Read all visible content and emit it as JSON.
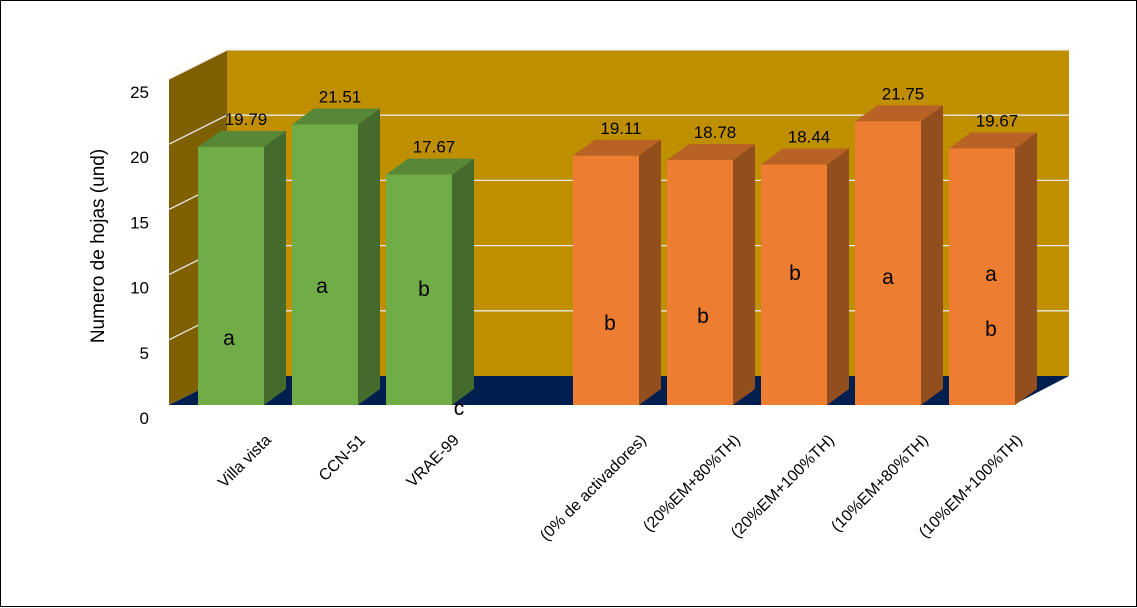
{
  "chart_data": {
    "type": "bar",
    "style": "3d-column",
    "ylabel": "Numero de hojas (und)",
    "ylim": [
      0,
      25
    ],
    "yticks": [
      0,
      5,
      10,
      15,
      20,
      25
    ],
    "grid": true,
    "legend": "none",
    "categories": [
      "Villa vista",
      "CCN-51",
      "VRAE-99",
      "(0% de activadores)",
      "(20%EM+80%TH)",
      "(20%EM+100%TH)",
      "(10%EM+80%TH)",
      "(10%EM+100%TH)"
    ],
    "values": [
      19.79,
      21.51,
      17.67,
      19.11,
      18.78,
      18.44,
      21.75,
      19.67
    ],
    "value_labels": [
      "19.79",
      "21.51",
      "17.67",
      "19.11",
      "18.78",
      "18.44",
      "21.75",
      "19.67"
    ],
    "significance_letters": [
      [
        "a"
      ],
      [
        "a"
      ],
      [
        "b",
        "c"
      ],
      [
        "b"
      ],
      [
        "b"
      ],
      [
        "b"
      ],
      [
        "a"
      ],
      [
        "a",
        "b"
      ]
    ],
    "groups": [
      {
        "members": [
          0,
          1,
          2
        ],
        "color": "#70ad47"
      },
      {
        "members": [
          3,
          4,
          5,
          6,
          7
        ],
        "color": "#ed7d31"
      }
    ],
    "colors": {
      "back_wall": "#bf8f00",
      "side_wall": "#7f6000",
      "floor": "#001f4f"
    }
  }
}
